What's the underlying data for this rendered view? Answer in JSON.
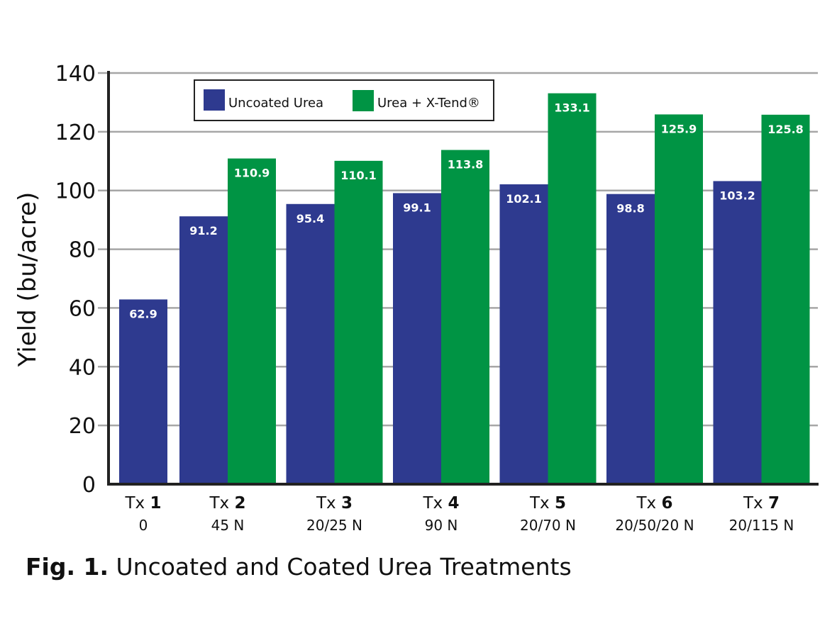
{
  "chart_data": {
    "type": "bar",
    "title": "",
    "caption_prefix": "Fig. 1.",
    "caption_text": "Uncoated and Coated Urea Treatments",
    "xlabel": "",
    "ylabel": "Yield (bu/acre)",
    "ylim": [
      0,
      140
    ],
    "yticks": [
      "0",
      "20",
      "40",
      "60",
      "80",
      "100",
      "120",
      "140"
    ],
    "grid": true,
    "legend_position": "top-left",
    "categories": [
      {
        "prefix": "Tx",
        "num": "1",
        "sub": "0"
      },
      {
        "prefix": "Tx",
        "num": "2",
        "sub": "45 N"
      },
      {
        "prefix": "Tx",
        "num": "3",
        "sub": "20/25 N"
      },
      {
        "prefix": "Tx",
        "num": "4",
        "sub": "90 N"
      },
      {
        "prefix": "Tx",
        "num": "5",
        "sub": "20/70 N"
      },
      {
        "prefix": "Tx",
        "num": "6",
        "sub": "20/50/20 N"
      },
      {
        "prefix": "Tx",
        "num": "7",
        "sub": "20/115 N"
      }
    ],
    "series": [
      {
        "name": "Uncoated Urea",
        "color": "#2e3a8f",
        "values": [
          62.9,
          91.2,
          95.4,
          99.1,
          102.1,
          98.8,
          103.2
        ],
        "labels": [
          "62.9",
          "91.2",
          "95.4",
          "99.1",
          "102.1",
          "98.8",
          "103.2"
        ]
      },
      {
        "name": "Urea + X-Tend®",
        "color": "#009444",
        "values": [
          null,
          110.9,
          110.1,
          113.8,
          133.1,
          125.9,
          125.8
        ],
        "labels": [
          null,
          "110.9",
          "110.1",
          "113.8",
          "133.1",
          "125.9",
          "125.8"
        ]
      }
    ]
  }
}
